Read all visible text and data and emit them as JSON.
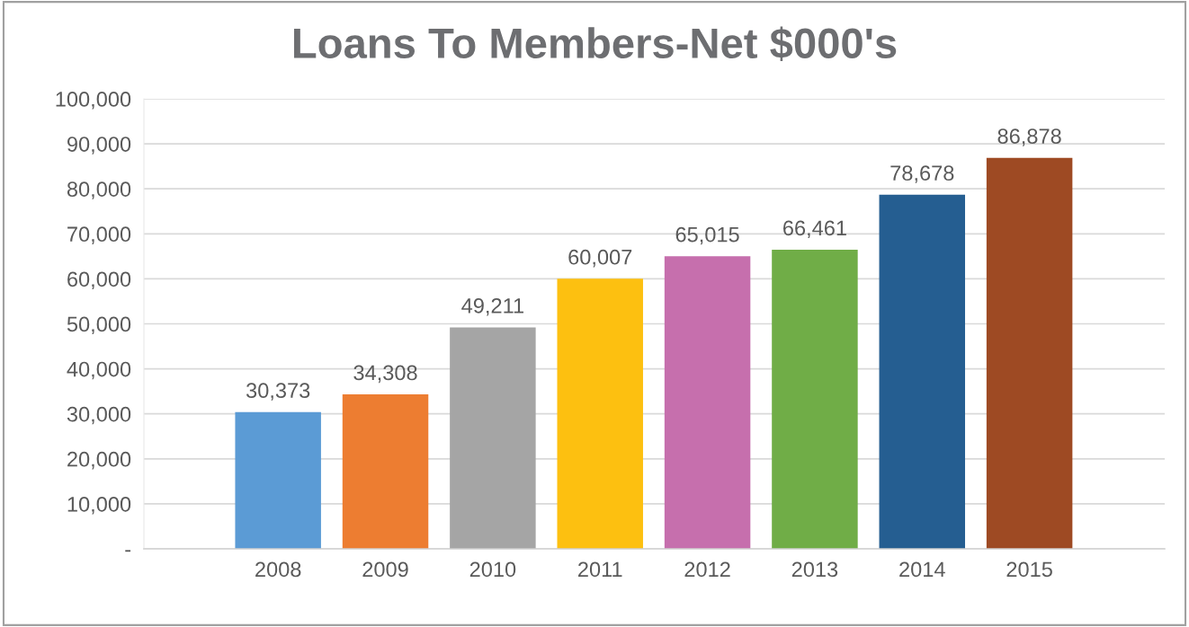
{
  "chart_data": {
    "type": "bar",
    "title": "Loans To Members-Net $000's",
    "categories": [
      "2008",
      "2009",
      "2010",
      "2011",
      "2012",
      "2013",
      "2014",
      "2015"
    ],
    "values": [
      30373,
      34308,
      49211,
      60007,
      65015,
      66461,
      78678,
      86878
    ],
    "colors": [
      "#5b9bd5",
      "#ed7d31",
      "#a5a5a5",
      "#fdc010",
      "#c66fad",
      "#70ad47",
      "#255e91",
      "#9e4a23"
    ],
    "value_labels": [
      "30,373",
      "34,308",
      "49,211",
      "60,007",
      "65,015",
      "66,461",
      "78,678",
      "86,878"
    ],
    "ylim": [
      0,
      100000
    ],
    "yticks": [
      {
        "value": 0,
        "label": "-"
      },
      {
        "value": 10000,
        "label": "10,000"
      },
      {
        "value": 20000,
        "label": "20,000"
      },
      {
        "value": 30000,
        "label": "30,000"
      },
      {
        "value": 40000,
        "label": "40,000"
      },
      {
        "value": 50000,
        "label": "50,000"
      },
      {
        "value": 60000,
        "label": "60,000"
      },
      {
        "value": 70000,
        "label": "70,000"
      },
      {
        "value": 80000,
        "label": "80,000"
      },
      {
        "value": 90000,
        "label": "90,000"
      },
      {
        "value": 100000,
        "label": "100,000"
      }
    ],
    "grid": "y"
  }
}
